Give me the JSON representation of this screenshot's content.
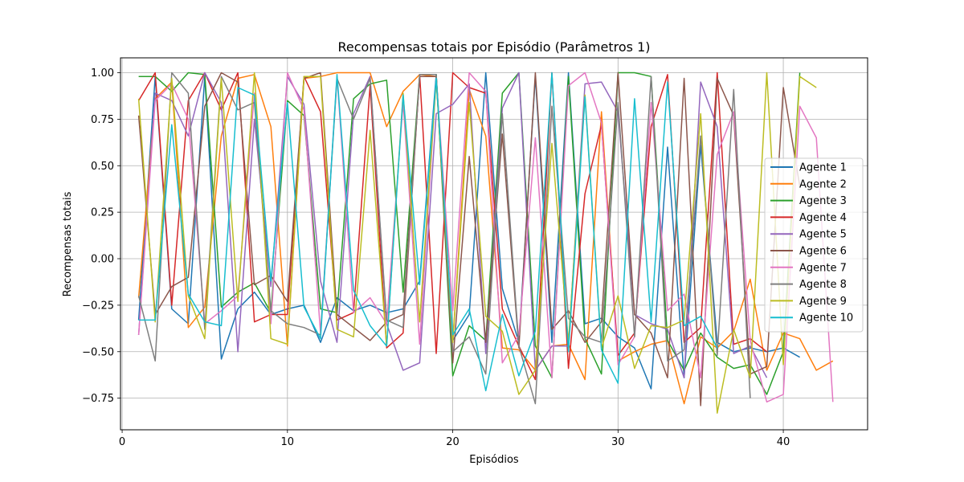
{
  "chart_data": {
    "type": "line",
    "title": "Recompensas totais por Episódio (Parâmetros 1)",
    "xlabel": "Episódios",
    "ylabel": "Recompensas totais",
    "xlim": [
      -0.1,
      45.1
    ],
    "ylim": [
      -0.92,
      1.08
    ],
    "xticks": [
      0,
      10,
      20,
      30,
      40
    ],
    "yticks": [
      -0.75,
      -0.5,
      -0.25,
      0.0,
      0.25,
      0.5,
      0.75,
      1.0
    ],
    "ytick_labels": [
      "−0.75",
      "−0.50",
      "−0.25",
      "0.00",
      "0.25",
      "0.50",
      "0.75",
      "1.00"
    ],
    "grid": true,
    "legend_position": "center-right",
    "series": [
      {
        "name": "Agente 1",
        "color": "#1f77b4",
        "x": [
          1,
          2,
          3,
          4,
          5,
          6,
          7,
          8,
          9,
          10,
          11,
          12,
          13,
          14,
          15,
          16,
          17,
          18,
          19,
          20,
          21,
          22,
          23,
          24,
          25,
          26,
          27,
          28,
          29,
          30,
          31,
          32,
          33,
          34,
          35,
          36,
          37,
          38,
          39,
          40,
          41
        ],
        "y": [
          -0.33,
          0.98,
          -0.27,
          -0.35,
          0.98,
          -0.54,
          -0.27,
          -0.18,
          -0.3,
          -0.27,
          -0.25,
          -0.45,
          -0.21,
          -0.28,
          -0.25,
          -0.29,
          -0.27,
          -0.12,
          0.99,
          -0.44,
          -0.3,
          1.0,
          -0.16,
          -0.45,
          0.98,
          -0.45,
          1.0,
          -0.35,
          -0.32,
          -0.42,
          -0.48,
          -0.7,
          0.6,
          -0.64,
          0.61,
          -0.45,
          -0.5,
          -0.48,
          -0.5,
          -0.48,
          -0.53
        ]
      },
      {
        "name": "Agente 2",
        "color": "#ff7f0e",
        "x": [
          1,
          2,
          3,
          4,
          5,
          6,
          7,
          8,
          9,
          10,
          11,
          12,
          13,
          14,
          15,
          16,
          17,
          18,
          19,
          20,
          21,
          22,
          23,
          24,
          25,
          26,
          27,
          28,
          29,
          30,
          31,
          32,
          33,
          34,
          35,
          36,
          37,
          38,
          39,
          40,
          41,
          42,
          43
        ],
        "y": [
          -0.21,
          0.86,
          0.95,
          -0.37,
          -0.26,
          0.66,
          0.97,
          0.99,
          0.71,
          -0.47,
          0.97,
          0.98,
          1.0,
          1.0,
          1.0,
          0.71,
          0.9,
          0.99,
          0.98,
          -0.45,
          0.91,
          0.66,
          -0.48,
          -0.49,
          -0.6,
          -0.47,
          -0.46,
          -0.65,
          0.79,
          -0.55,
          -0.5,
          -0.46,
          -0.44,
          -0.78,
          -0.42,
          -0.48,
          -0.39,
          -0.11,
          -0.6,
          -0.4,
          -0.43,
          -0.6,
          -0.55
        ]
      },
      {
        "name": "Agente 3",
        "color": "#2ca02c",
        "x": [
          1,
          2,
          3,
          4,
          5,
          6,
          7,
          8,
          9,
          10,
          11,
          12,
          13,
          14,
          15,
          16,
          17,
          18,
          19,
          20,
          21,
          22,
          23,
          24,
          25,
          26,
          27,
          28,
          29,
          30,
          31,
          32,
          33,
          34,
          35,
          36,
          37,
          38,
          39,
          40,
          41
        ],
        "y": [
          0.98,
          0.98,
          0.9,
          1.0,
          0.99,
          -0.26,
          -0.18,
          -0.13,
          -0.29,
          0.85,
          0.77,
          -0.27,
          -0.29,
          0.86,
          0.94,
          0.96,
          -0.18,
          0.99,
          0.99,
          -0.63,
          -0.36,
          -0.44,
          0.89,
          1.0,
          -0.47,
          -0.64,
          0.98,
          -0.43,
          -0.62,
          1.0,
          1.0,
          0.98,
          -0.44,
          -0.6,
          -0.4,
          -0.53,
          -0.59,
          -0.57,
          -0.73,
          -0.5,
          1.0
        ]
      },
      {
        "name": "Agente 4",
        "color": "#d62728",
        "x": [
          1,
          2,
          3,
          4,
          5,
          6,
          7,
          8,
          9,
          10,
          11,
          12,
          13,
          14,
          15,
          16,
          17,
          18,
          19,
          20,
          21,
          22,
          23,
          24,
          25,
          26,
          27,
          28,
          29,
          30,
          31,
          32,
          33,
          34,
          35,
          36,
          37,
          38,
          39
        ],
        "y": [
          0.85,
          1.0,
          -0.25,
          0.85,
          1.0,
          0.8,
          1.0,
          -0.34,
          -0.3,
          -0.3,
          0.98,
          0.79,
          -0.33,
          -0.29,
          0.93,
          -0.48,
          -0.4,
          0.99,
          -0.51,
          1.0,
          0.92,
          0.89,
          -0.27,
          -0.47,
          -0.65,
          1.0,
          -0.59,
          0.35,
          0.72,
          -0.52,
          -0.4,
          0.71,
          0.99,
          -0.45,
          -0.37,
          1.0,
          -0.46,
          -0.43,
          -0.5
        ]
      },
      {
        "name": "Agente 5",
        "color": "#9467bd",
        "x": [
          1,
          2,
          3,
          4,
          5,
          6,
          7,
          8,
          9,
          10,
          11,
          12,
          13,
          14,
          15,
          16,
          17,
          18,
          19,
          20,
          21,
          22,
          23,
          24,
          25,
          26,
          27,
          28,
          29,
          30,
          31,
          32,
          33,
          34,
          35,
          36,
          37,
          38,
          39
        ],
        "y": [
          -0.41,
          0.89,
          0.85,
          0.66,
          1.0,
          0.84,
          -0.5,
          0.75,
          -0.15,
          0.98,
          0.83,
          -0.12,
          -0.45,
          0.78,
          0.98,
          -0.35,
          -0.6,
          -0.56,
          0.78,
          0.83,
          0.94,
          -0.51,
          0.81,
          1.0,
          -0.6,
          -0.47,
          -0.47,
          0.94,
          0.95,
          0.79,
          -0.3,
          -0.35,
          -0.38,
          -0.64,
          0.95,
          0.71,
          -0.51,
          -0.47,
          -0.64
        ]
      },
      {
        "name": "Agente 6",
        "color": "#8c564b",
        "x": [
          1,
          2,
          3,
          4,
          5,
          6,
          7,
          8,
          9,
          10,
          11,
          12,
          13,
          14,
          15,
          16,
          17,
          18,
          19,
          20,
          21,
          22,
          23,
          24,
          25,
          26,
          27,
          28,
          29,
          30,
          31,
          32,
          33,
          34,
          35,
          36,
          37,
          38,
          39,
          40,
          41
        ],
        "y": [
          0.77,
          -0.3,
          -0.15,
          -0.1,
          0.82,
          1.0,
          0.95,
          -0.14,
          -0.09,
          -0.23,
          0.97,
          1.0,
          -0.3,
          -0.37,
          -0.44,
          -0.34,
          -0.3,
          0.98,
          0.98,
          -0.56,
          0.55,
          -0.45,
          0.67,
          -0.48,
          1.0,
          -0.38,
          -0.28,
          -0.45,
          -0.34,
          1.0,
          -0.3,
          -0.4,
          -0.64,
          0.97,
          -0.79,
          0.97,
          0.77,
          -0.62,
          -0.58,
          0.92,
          0.39
        ]
      },
      {
        "name": "Agente 7",
        "color": "#e377c2",
        "x": [
          1,
          2,
          3,
          4,
          5,
          6,
          7,
          8,
          9,
          10,
          11,
          12,
          13,
          14,
          15,
          16,
          17,
          18,
          19,
          20,
          21,
          22,
          23,
          24,
          25,
          26,
          27,
          28,
          29,
          30,
          31,
          32,
          33,
          34,
          35,
          36,
          37,
          38,
          39,
          40,
          41,
          42,
          43
        ],
        "y": [
          -0.41,
          0.85,
          0.94,
          0.75,
          -0.35,
          -0.28,
          -0.2,
          0.89,
          -0.35,
          1.0,
          0.8,
          -0.4,
          0.98,
          -0.29,
          -0.21,
          -0.35,
          0.84,
          -0.46,
          0.97,
          -0.28,
          1.0,
          0.9,
          -0.56,
          -0.41,
          0.65,
          -0.64,
          0.93,
          1.0,
          0.73,
          -0.57,
          -0.42,
          0.84,
          -0.28,
          -0.19,
          -0.64,
          0.56,
          0.79,
          -0.44,
          -0.77,
          -0.73,
          0.82,
          0.65,
          -0.77
        ]
      },
      {
        "name": "Agente 8",
        "color": "#7f7f7f",
        "x": [
          1,
          2,
          3,
          4,
          5,
          6,
          7,
          8,
          9,
          10,
          11,
          12,
          13,
          14,
          15,
          16,
          17,
          18,
          19,
          20,
          21,
          22,
          23,
          24,
          25,
          26,
          27,
          28,
          29,
          30,
          31,
          32,
          33,
          34,
          35,
          36,
          37,
          38
        ],
        "y": [
          -0.2,
          -0.55,
          1.0,
          0.89,
          -0.38,
          0.98,
          0.8,
          0.84,
          -0.28,
          -0.35,
          -0.37,
          -0.41,
          0.97,
          0.75,
          0.97,
          -0.33,
          -0.37,
          0.99,
          0.99,
          -0.5,
          -0.42,
          -0.62,
          0.78,
          -0.47,
          -0.78,
          0.82,
          -0.32,
          -0.42,
          -0.45,
          0.84,
          -0.42,
          0.98,
          -0.55,
          -0.49,
          0.66,
          -0.52,
          0.91,
          -0.75
        ]
      },
      {
        "name": "Agente 9",
        "color": "#bcbd22",
        "x": [
          1,
          2,
          3,
          4,
          5,
          6,
          7,
          8,
          9,
          10,
          11,
          12,
          13,
          14,
          15,
          16,
          17,
          18,
          19,
          20,
          21,
          22,
          23,
          24,
          25,
          26,
          27,
          28,
          29,
          30,
          31,
          32,
          33,
          34,
          35,
          36,
          37,
          38,
          39,
          40,
          41,
          42
        ],
        "y": [
          0.86,
          -0.34,
          0.97,
          -0.2,
          -0.43,
          0.97,
          -0.23,
          1.0,
          -0.43,
          -0.46,
          0.98,
          0.98,
          -0.38,
          -0.42,
          0.69,
          -0.47,
          0.89,
          -0.34,
          0.96,
          -0.45,
          0.84,
          -0.31,
          -0.39,
          -0.73,
          -0.6,
          0.62,
          -0.45,
          0.88,
          -0.48,
          -0.2,
          -0.59,
          -0.36,
          -0.37,
          -0.33,
          0.78,
          -0.83,
          -0.38,
          -0.64,
          1.0,
          -0.57,
          0.98,
          0.92
        ]
      },
      {
        "name": "Agente 10",
        "color": "#17becf",
        "x": [
          1,
          2,
          3,
          4,
          5,
          6,
          7,
          8,
          9,
          10,
          11,
          12,
          13,
          14,
          15,
          16,
          17,
          18,
          19,
          20,
          21,
          22,
          23,
          24,
          25,
          26,
          27,
          28,
          29,
          30,
          31,
          32,
          33,
          34,
          35,
          36
        ],
        "y": [
          -0.33,
          -0.33,
          0.72,
          -0.19,
          -0.34,
          -0.36,
          0.92,
          0.88,
          -0.12,
          0.84,
          -0.26,
          -0.43,
          0.99,
          -0.17,
          -0.36,
          -0.47,
          0.88,
          -0.14,
          0.97,
          -0.41,
          -0.27,
          -0.71,
          -0.3,
          -0.63,
          -0.39,
          1.0,
          -0.5,
          0.87,
          -0.49,
          -0.67,
          0.86,
          -0.34,
          0.95,
          -0.36,
          -0.31,
          -0.48
        ]
      }
    ]
  }
}
